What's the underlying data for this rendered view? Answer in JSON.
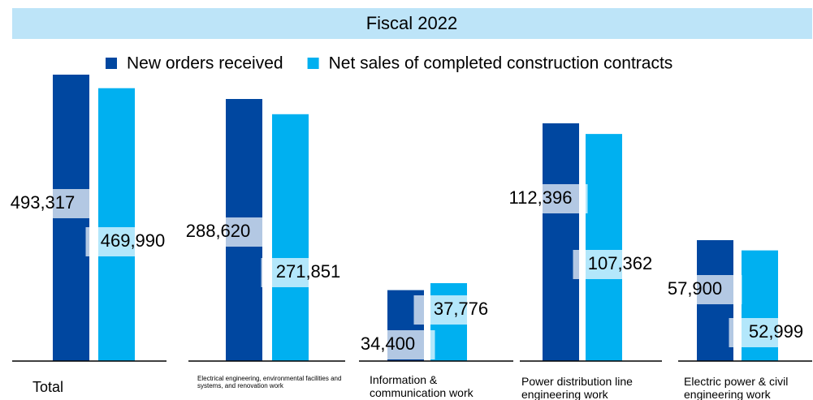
{
  "chart_data": {
    "type": "bar",
    "title": "Fiscal 2022",
    "categories": [
      "Total",
      "Electrical engineering, environmental facilities and systems, and renovation work",
      "Information & communication work",
      "Power distribution line engineering work",
      "Electric power & civil engineering work"
    ],
    "series": [
      {
        "name": "New orders received",
        "color": "#0047a0",
        "values": [
          493317,
          288620,
          34400,
          112396,
          57900
        ],
        "value_labels": [
          "493,317",
          "288,620",
          "34,400",
          "112,396",
          "57,900"
        ]
      },
      {
        "name": "Net sales of completed construction contracts",
        "color": "#00b0f0",
        "values": [
          469990,
          271851,
          37776,
          107362,
          52999
        ],
        "value_labels": [
          "469,990",
          "271,851",
          "37,776",
          "107,362",
          "52,999"
        ]
      }
    ],
    "legend": "top"
  }
}
